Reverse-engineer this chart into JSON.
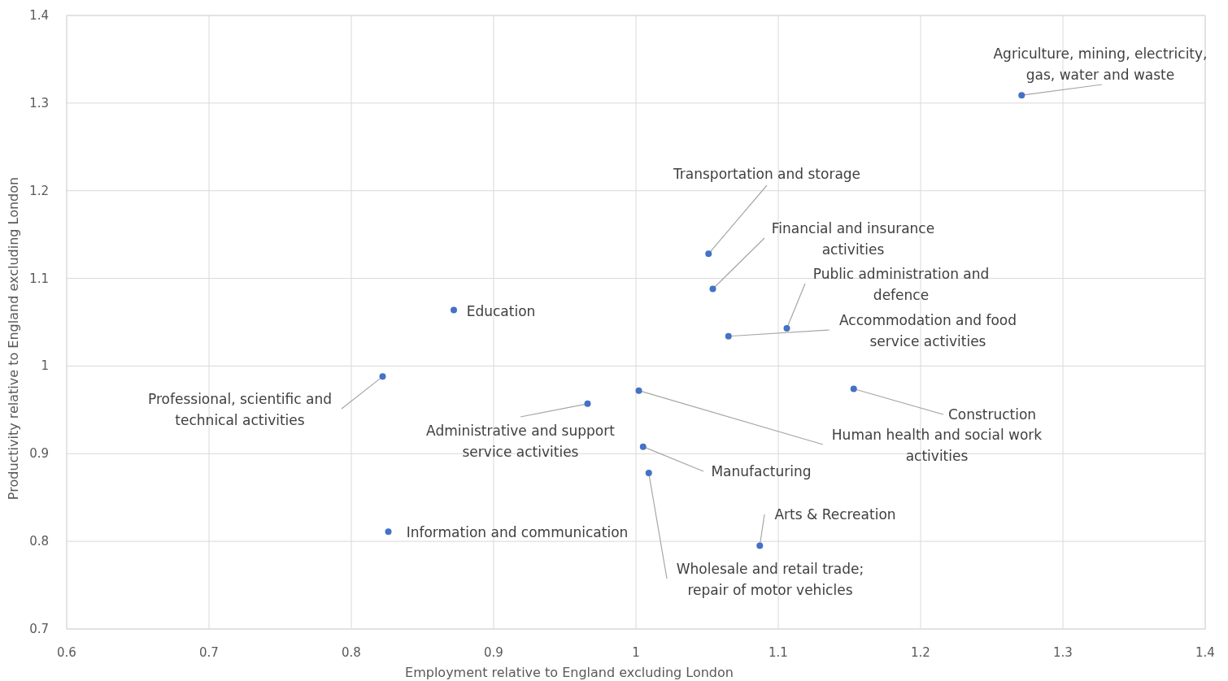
{
  "chart_data": {
    "type": "scatter",
    "xlabel": "Employment relative to England excluding London",
    "ylabel": "Productivity relative to England excluding London",
    "x": [
      1.271,
      1.051,
      1.054,
      1.106,
      1.065,
      0.872,
      0.822,
      0.966,
      1.002,
      1.153,
      1.005,
      1.009,
      1.087,
      0.826
    ],
    "series": [
      {
        "color": "#4472c4",
        "values": [
          1.309,
          1.128,
          1.088,
          1.043,
          1.034,
          1.064,
          0.988,
          0.957,
          0.972,
          0.974,
          0.908,
          0.878,
          0.795,
          0.811
        ]
      }
    ],
    "xlim": [
      0.6,
      1.4
    ],
    "xticks": [
      0.6,
      0.7,
      0.8,
      0.9,
      1,
      1.1,
      1.2,
      1.3,
      1.4
    ],
    "ylim": [
      0.7,
      1.4
    ],
    "yticks": [
      0.7,
      0.8,
      0.9,
      1,
      1.1,
      1.2,
      1.3,
      1.4
    ],
    "grid": true,
    "marker": "circle",
    "annotations": [
      {
        "text": "Agriculture, mining, electricity, gas, water and waste",
        "x": 1.271,
        "y": 1.309
      },
      {
        "text": "Transportation and storage",
        "x": 1.051,
        "y": 1.128
      },
      {
        "text": "Financial and insurance activities",
        "x": 1.054,
        "y": 1.088
      },
      {
        "text": "Public administration and defence",
        "x": 1.106,
        "y": 1.043
      },
      {
        "text": "Accommodation and food service activities",
        "x": 1.065,
        "y": 1.034
      },
      {
        "text": "Education",
        "x": 0.872,
        "y": 1.064
      },
      {
        "text": "Professional, scientific and technical activities",
        "x": 0.822,
        "y": 0.988
      },
      {
        "text": "Administrative and support service activities",
        "x": 0.966,
        "y": 0.957
      },
      {
        "text": "Human health and social work activities",
        "x": 1.002,
        "y": 0.972
      },
      {
        "text": "Construction",
        "x": 1.153,
        "y": 0.974
      },
      {
        "text": "Manufacturing",
        "x": 1.005,
        "y": 0.908
      },
      {
        "text": "Wholesale and retail trade; repair of motor vehicles",
        "x": 1.009,
        "y": 0.878
      },
      {
        "text": "Arts & Recreation",
        "x": 1.087,
        "y": 0.795
      },
      {
        "text": "Information and communication",
        "x": 0.826,
        "y": 0.811
      }
    ]
  }
}
